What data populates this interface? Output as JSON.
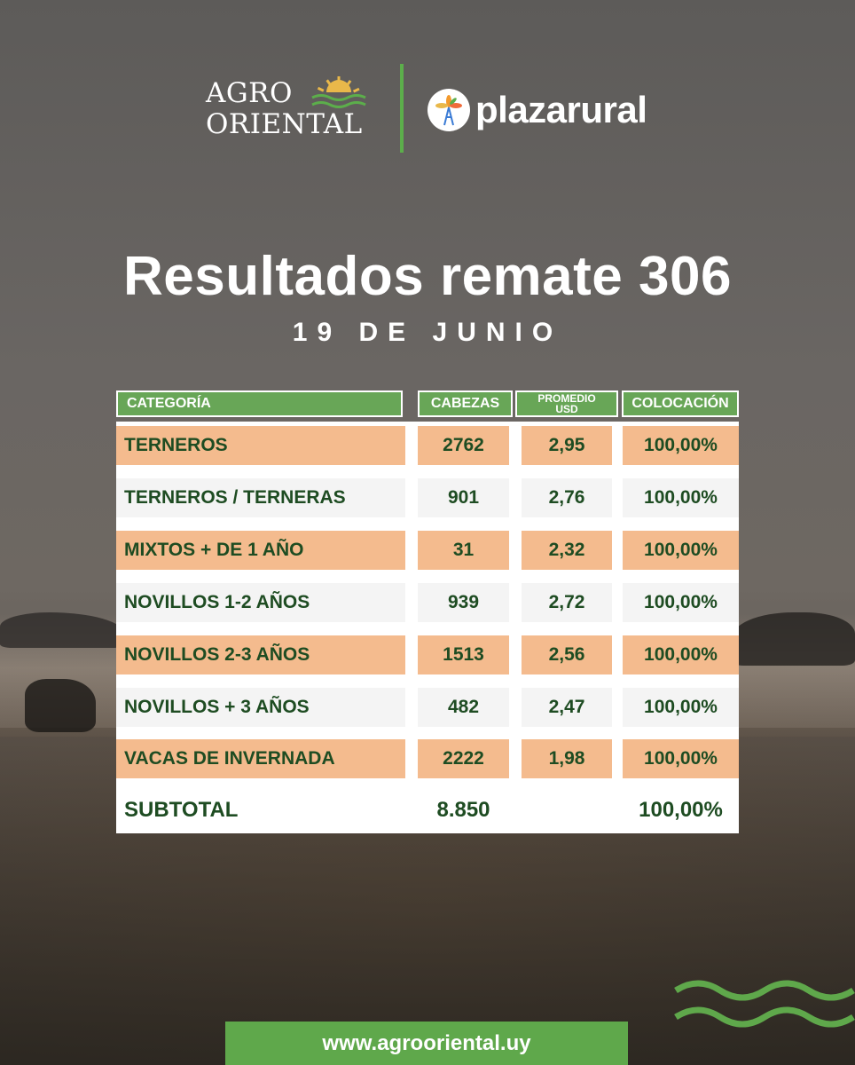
{
  "brand": {
    "agro_line1": "AGRO",
    "agro_line2": "ORIENTAL",
    "partner": "plazarural",
    "accent_green": "#5fa84b",
    "row_orange": "#f4bb8e",
    "text_dark_green": "#1e4c22"
  },
  "title": "Resultados remate 306",
  "subtitle": "19 DE JUNIO",
  "table": {
    "headers": {
      "categoria": "CATEGORÍA",
      "cabezas": "CABEZAS",
      "promedio_line1": "PROMEDIO",
      "promedio_line2": "USD",
      "colocacion": "COLOCACIÓN"
    },
    "rows": [
      {
        "categoria": "TERNEROS",
        "cabezas": "2762",
        "promedio": "2,95",
        "colocacion": "100,00%"
      },
      {
        "categoria": "TERNEROS / TERNERAS",
        "cabezas": "901",
        "promedio": "2,76",
        "colocacion": "100,00%"
      },
      {
        "categoria": "MIXTOS + DE 1 AÑO",
        "cabezas": "31",
        "promedio": "2,32",
        "colocacion": "100,00%"
      },
      {
        "categoria": "NOVILLOS 1-2 AÑOS",
        "cabezas": "939",
        "promedio": "2,72",
        "colocacion": "100,00%"
      },
      {
        "categoria": "NOVILLOS 2-3 AÑOS",
        "cabezas": "1513",
        "promedio": "2,56",
        "colocacion": "100,00%"
      },
      {
        "categoria": "NOVILLOS + 3 AÑOS",
        "cabezas": "482",
        "promedio": "2,47",
        "colocacion": "100,00%"
      },
      {
        "categoria": "VACAS DE INVERNADA",
        "cabezas": "2222",
        "promedio": "1,98",
        "colocacion": "100,00%"
      }
    ],
    "subtotal": {
      "label": "SUBTOTAL",
      "cabezas": "8.850",
      "colocacion": "100,00%"
    }
  },
  "footer": {
    "url": "www.agrooriental.uy"
  }
}
